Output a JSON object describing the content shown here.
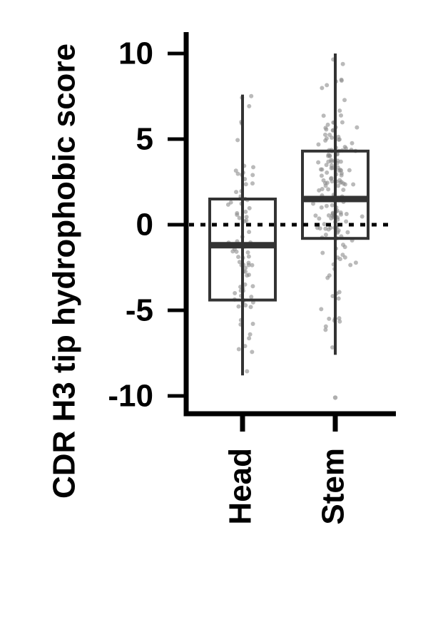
{
  "chart_data": {
    "type": "box",
    "title": "",
    "xlabel": "",
    "ylabel": "CDR H3 tip hydrophobic score",
    "ylim": [
      -11,
      11
    ],
    "yticks": [
      10,
      5,
      0,
      -5,
      -10
    ],
    "ytick_labels": [
      "10",
      "5",
      "0",
      "-5",
      "-10"
    ],
    "reference_line": {
      "y": 0,
      "style": "dotted"
    },
    "categories": [
      "Head",
      "Stem"
    ],
    "series": [
      {
        "name": "Head",
        "whisker_low": -8.8,
        "q1": -4.4,
        "median": -1.2,
        "q3": 1.5,
        "whisker_high": 7.6
      },
      {
        "name": "Stem",
        "whisker_low": -7.6,
        "q1": -0.8,
        "median": 1.5,
        "q3": 4.3,
        "whisker_high": 10.0,
        "outliers": [
          -10.1
        ]
      }
    ],
    "colors": {
      "box": "#333333",
      "points": "#8c8c8c",
      "axis": "#000000"
    }
  }
}
